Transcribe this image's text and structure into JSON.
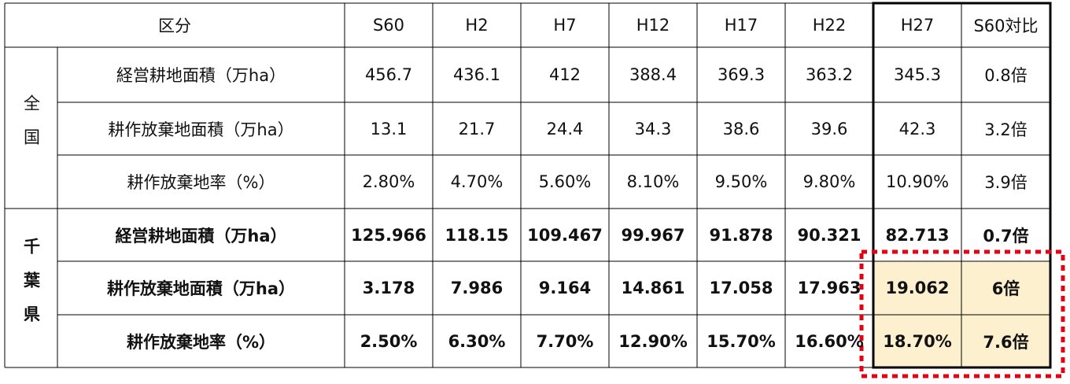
{
  "header": {
    "label": "区分",
    "columns": [
      "S60",
      "H2",
      "H7",
      "H12",
      "H17",
      "H22",
      "H27",
      "S60対比"
    ]
  },
  "groups": [
    {
      "label": "全国",
      "rows": [
        {
          "label": "経営耕地面積（万ha）",
          "cells": [
            "456.7",
            "436.1",
            "412",
            "388.4",
            "369.3",
            "363.2",
            "345.3",
            "0.8倍"
          ]
        },
        {
          "label": "耕作放棄地面積（万ha）",
          "cells": [
            "13.1",
            "21.7",
            "24.4",
            "34.3",
            "38.6",
            "39.6",
            "42.3",
            "3.2倍"
          ]
        },
        {
          "label": "耕作放棄地率（%）",
          "cells": [
            "2.80%",
            "4.70%",
            "5.60%",
            "8.10%",
            "9.50%",
            "9.80%",
            "10.90%",
            "3.9倍"
          ]
        }
      ]
    },
    {
      "label": "千葉県",
      "rows": [
        {
          "label": "経営耕地面積（万ha）",
          "cells": [
            "125.966",
            "118.15",
            "109.467",
            "99.967",
            "91.878",
            "90.321",
            "82.713",
            "0.7倍"
          ]
        },
        {
          "label": "耕作放棄地面積（万ha）",
          "cells": [
            "3.178",
            "7.986",
            "9.164",
            "14.861",
            "17.058",
            "17.963",
            "19.062",
            "6倍"
          ]
        },
        {
          "label": "耕作放棄地率（%）",
          "cells": [
            "2.50%",
            "6.30%",
            "7.70%",
            "12.90%",
            "15.70%",
            "16.60%",
            "18.70%",
            "7.6倍"
          ]
        }
      ]
    }
  ]
}
